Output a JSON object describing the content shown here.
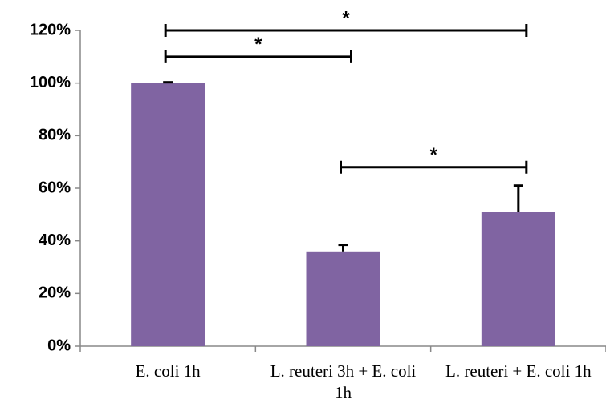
{
  "chart_data": {
    "type": "bar",
    "categories": [
      "E. coli 1h",
      "L. reuteri 3h + E. coli 1h",
      "L. reuteri + E. coli 1h"
    ],
    "values": [
      100,
      36,
      51
    ],
    "errors": [
      0.3,
      2.5,
      10
    ],
    "color": "#8064a2",
    "ylim": [
      0,
      120
    ],
    "yticks": [
      {
        "value": 0,
        "label": "0%"
      },
      {
        "value": 20,
        "label": "20%"
      },
      {
        "value": 40,
        "label": "40%"
      },
      {
        "value": 60,
        "label": "60%"
      },
      {
        "value": 80,
        "label": "80%"
      },
      {
        "value": 100,
        "label": "100%"
      },
      {
        "value": 120,
        "label": "120%"
      }
    ],
    "grid": false,
    "annotations": [
      {
        "text": "*",
        "from": 0,
        "to": 2,
        "y": 120
      },
      {
        "text": "*",
        "from": 0,
        "to": 1,
        "y": 110
      },
      {
        "text": "*",
        "from": 1,
        "to": 2,
        "y": 68
      }
    ]
  }
}
